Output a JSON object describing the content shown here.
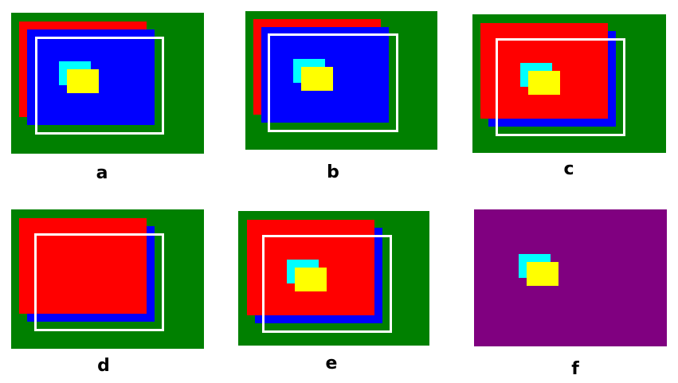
{
  "colors": {
    "green": "#008000",
    "red": "#ff0000",
    "blue": "#0000ff",
    "cyan": "#00ffff",
    "yellow": "#ffff00",
    "purple": "#800080",
    "white": "#ffffff"
  },
  "panels": [
    {
      "label": "a",
      "background": "green",
      "stack_top": "blue",
      "outline": "shown",
      "small_squares": "shown"
    },
    {
      "label": "b",
      "background": "green",
      "stack_top": "blue",
      "outline": "shown",
      "small_squares": "shown"
    },
    {
      "label": "c",
      "background": "green",
      "stack_top": "red",
      "outline": "shown",
      "small_squares": "shown"
    },
    {
      "label": "d",
      "background": "green",
      "stack_top": "red",
      "outline": "shown",
      "small_squares": "hidden"
    },
    {
      "label": "e",
      "background": "green",
      "stack_top": "red",
      "outline": "shown",
      "small_squares": "shown"
    },
    {
      "label": "f",
      "background": "purple",
      "stack_top": "none",
      "outline": "hidden",
      "small_squares": "shown"
    }
  ]
}
